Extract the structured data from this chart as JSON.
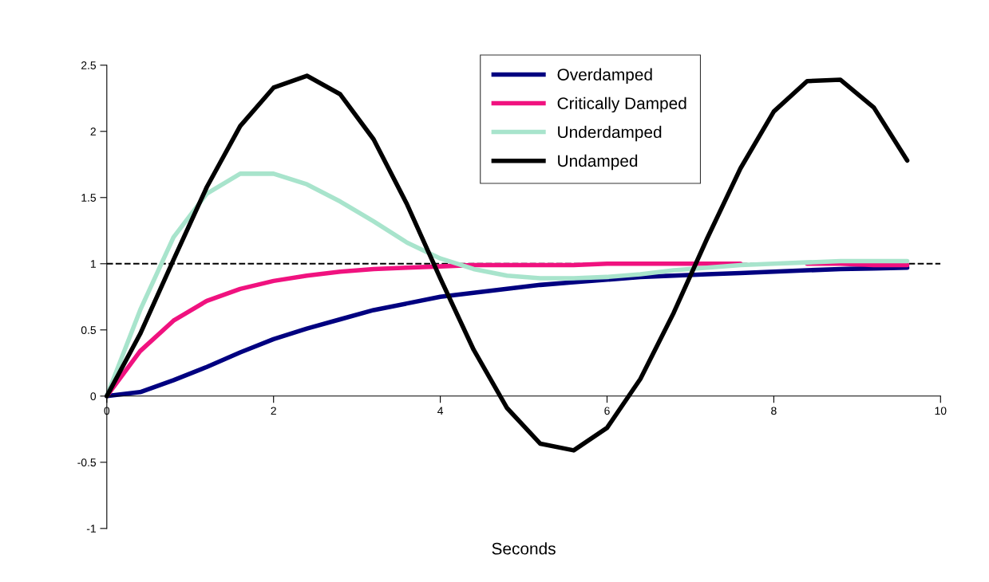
{
  "chart_data": {
    "type": "line",
    "xlabel": "Seconds",
    "x": [
      0,
      0.4,
      0.8,
      1.2,
      1.6,
      2.0,
      2.4,
      2.8,
      3.2,
      3.6,
      4.0,
      4.4,
      4.8,
      5.2,
      5.6,
      6.0,
      6.4,
      6.8,
      7.2,
      7.6,
      8.0,
      8.4,
      8.8,
      9.2,
      9.6
    ],
    "series": [
      {
        "name": "Overdamped",
        "color": "#000080",
        "values": [
          0,
          0.03,
          0.12,
          0.22,
          0.33,
          0.43,
          0.51,
          0.58,
          0.65,
          0.7,
          0.75,
          0.78,
          0.81,
          0.84,
          0.86,
          0.88,
          0.9,
          0.91,
          0.92,
          0.93,
          0.94,
          0.95,
          0.96,
          0.965,
          0.97
        ]
      },
      {
        "name": "Critically Damped",
        "color": "#f0127f",
        "values": [
          0,
          0.34,
          0.57,
          0.72,
          0.81,
          0.87,
          0.91,
          0.94,
          0.96,
          0.97,
          0.98,
          0.99,
          0.99,
          0.99,
          0.99,
          1.0,
          1.0,
          1.0,
          1.0,
          1.0,
          null,
          1.0,
          1.0,
          0.99,
          0.99
        ]
      },
      {
        "name": "Underdamped",
        "color": "#a8e4cc",
        "values": [
          0,
          0.65,
          1.2,
          1.53,
          1.68,
          1.68,
          1.6,
          1.47,
          1.32,
          1.16,
          1.04,
          0.96,
          0.91,
          0.89,
          0.89,
          0.9,
          0.92,
          0.95,
          0.97,
          0.99,
          1.0,
          1.01,
          1.02,
          1.02,
          1.02
        ]
      },
      {
        "name": "Undamped",
        "color": "#000000",
        "values": [
          0,
          0.47,
          1.03,
          1.58,
          2.04,
          2.33,
          2.42,
          2.28,
          1.94,
          1.45,
          0.89,
          0.35,
          -0.09,
          -0.36,
          -0.41,
          -0.24,
          0.13,
          0.63,
          1.19,
          1.72,
          2.15,
          2.38,
          2.39,
          2.18,
          1.78
        ]
      }
    ],
    "xlim": [
      0,
      10
    ],
    "xticks": [
      0,
      2,
      4,
      6,
      8,
      10
    ],
    "ylim": [
      -1,
      2.5
    ],
    "yticks": [
      -1,
      -0.5,
      0,
      0.5,
      1,
      1.5,
      2,
      2.5
    ],
    "ref_lines": [
      {
        "axis": "y",
        "value": 1,
        "color": "#000000",
        "line_style": "dashed"
      }
    ],
    "grid": false,
    "legend": "top",
    "marker": "none",
    "line_style": "solid"
  }
}
